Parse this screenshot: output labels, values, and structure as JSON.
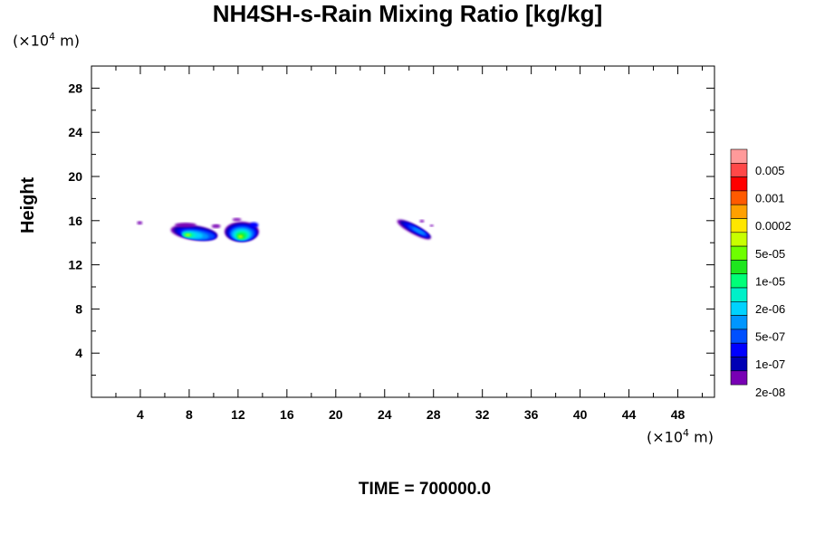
{
  "chart_data": {
    "type": "heatmap",
    "title": "NH4SH-s-Rain Mixing Ratio [kg/kg]",
    "ylabel": "Height",
    "x_unit": "(×10⁴ m)",
    "y_unit": "(×10⁴ m)",
    "xlim": [
      0,
      51
    ],
    "ylim": [
      0,
      30
    ],
    "x_ticks": [
      4,
      8,
      12,
      16,
      20,
      24,
      28,
      32,
      36,
      40,
      44,
      48
    ],
    "y_ticks": [
      4,
      8,
      12,
      16,
      20,
      24,
      28
    ],
    "footer": "TIME = 700000.0",
    "colorbar": {
      "labels": [
        "0.005",
        "0.001",
        "0.0002",
        "5e-05",
        "1e-05",
        "2e-06",
        "5e-07",
        "1e-07",
        "2e-08"
      ],
      "colors_top_to_bottom": [
        "#ff9a9a",
        "#ff4848",
        "#ff0000",
        "#ff5a00",
        "#ffa000",
        "#ffe600",
        "#c8ff00",
        "#6eff00",
        "#1ee61e",
        "#00ff78",
        "#00f0c8",
        "#00d2ff",
        "#0096ff",
        "#0050ff",
        "#0000ff",
        "#0000b4",
        "#7800b4"
      ]
    },
    "features": [
      {
        "name": "speck",
        "x_range": [
          3.7,
          4.2
        ],
        "y_range": [
          15.6,
          16.0
        ],
        "max_level": "2e-08"
      },
      {
        "name": "cloud-left",
        "x_range": [
          6.2,
          10.8
        ],
        "y_range": [
          13.9,
          15.9
        ],
        "max_level": "5e-05"
      },
      {
        "name": "cloud-middle",
        "x_range": [
          10.4,
          14.0
        ],
        "y_range": [
          13.9,
          16.2
        ],
        "max_level": "5e-05"
      },
      {
        "name": "cloud-right",
        "x_range": [
          24.8,
          28.1
        ],
        "y_range": [
          14.3,
          16.0
        ],
        "max_level": "2e-06"
      }
    ]
  }
}
